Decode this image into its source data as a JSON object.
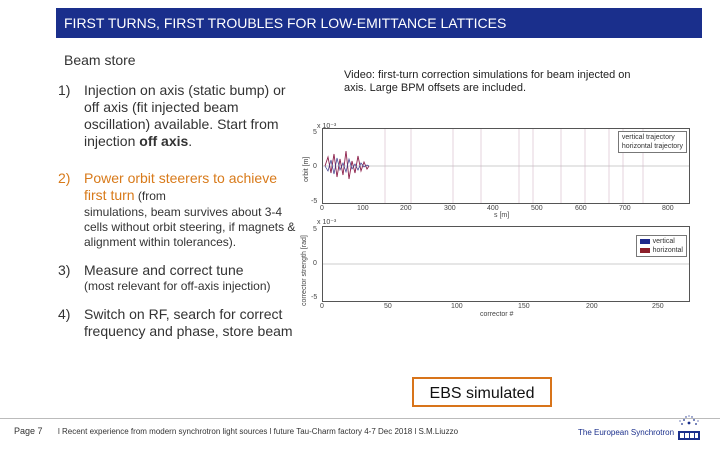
{
  "slide": {
    "title": "FIRST TURNS, FIRST TROUBLES FOR LOW-EMITTANCE LATTICES",
    "section_title": "Beam store",
    "items": [
      {
        "num": "1)",
        "text_a": "Injection on axis (static bump) or off axis (fit injected beam oscillation) available. Start from injection ",
        "text_bold": "off axis",
        "text_b": "."
      },
      {
        "num": "2)",
        "text_orange": "Power orbit steerers to achieve first turn",
        "text_tail": " (from",
        "small": "simulations, beam survives about 3-4 cells without orbit steering, if magnets & alignment within tolerances)."
      },
      {
        "num": "3)",
        "text": "Measure and correct tune",
        "small": "(most relevant for off-axis injection)"
      },
      {
        "num": "4)",
        "text": "Switch on RF, search for correct frequency and phase, store beam"
      }
    ],
    "video_caption": "Video: first-turn correction simulations for beam injected on axis. Large BPM offsets are included.",
    "ebs_label": "EBS simulated"
  },
  "plots": {
    "top": {
      "ylabel": "orbit [m]",
      "exponent": "x 10⁻³",
      "xlabel": "s [m]",
      "y_ticks": [
        "5",
        "0",
        "-5"
      ],
      "x_ticks": [
        "0",
        "100",
        "200",
        "300",
        "400",
        "500",
        "600",
        "700",
        "800"
      ],
      "legend": [
        {
          "label": "vertical trajectory",
          "color": "#5a5a5a"
        },
        {
          "label": "horizontal trajectory",
          "color": "#5a5a5a"
        }
      ]
    },
    "bottom": {
      "ylabel": "corrector strength [rad]",
      "exponent": "x 10⁻³",
      "xlabel": "corrector #",
      "y_ticks": [
        "5",
        "0",
        "-5"
      ],
      "x_ticks": [
        "0",
        "50",
        "100",
        "150",
        "200",
        "250"
      ],
      "legend": [
        {
          "label": "vertical",
          "color": "#1f2a8c"
        },
        {
          "label": "horizontal",
          "color": "#8c1f2a"
        }
      ]
    }
  },
  "footer": {
    "page": "Page 7",
    "text": "l Recent experience from modern synchrotron light sources l future Tau-Charm factory 4-7 Dec 2018 l S.M.Liuzzo",
    "org": "The European Synchrotron"
  },
  "colors": {
    "title_bar": "#1a2f8c",
    "orange": "#d87a1a",
    "ebs_border": "#d8741a"
  }
}
